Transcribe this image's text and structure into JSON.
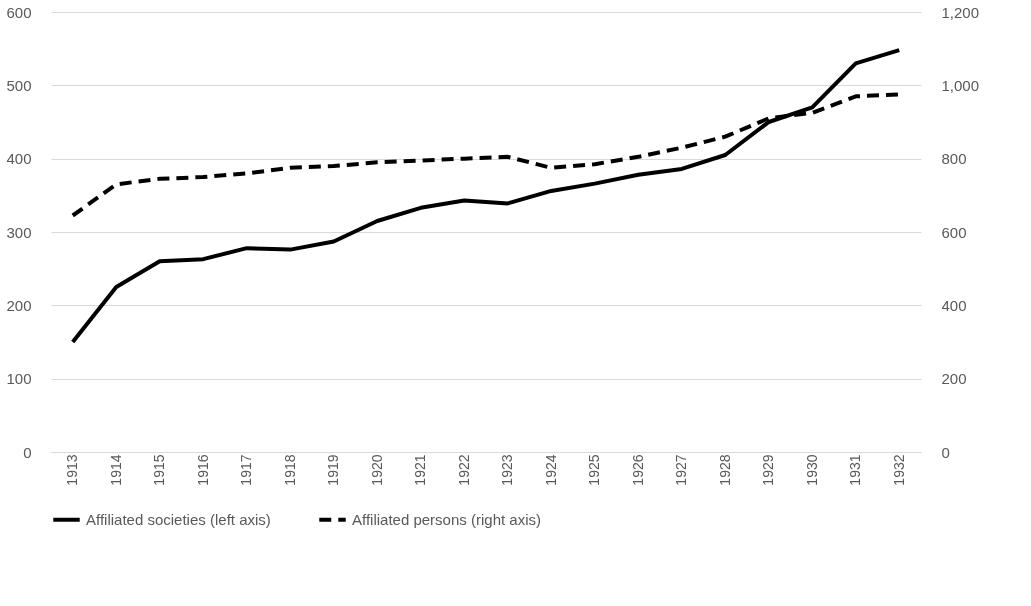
{
  "chart_data": {
    "type": "line",
    "categories": [
      "1913",
      "1914",
      "1915",
      "1916",
      "1917",
      "1918",
      "1919",
      "1920",
      "1921",
      "1922",
      "1923",
      "1924",
      "1925",
      "1926",
      "1927",
      "1928",
      "1929",
      "1930",
      "1931",
      "1932"
    ],
    "series": [
      {
        "name": "Affiliated societies (left axis)",
        "color": "#000000",
        "line_style": "solid",
        "values": [
          150,
          225,
          260,
          263,
          278,
          276,
          287,
          315,
          333,
          343,
          339,
          356,
          366,
          378,
          386,
          405,
          450,
          470,
          530,
          548
        ]
      },
      {
        "name": "Affiliated persons (right axis)",
        "color": "#000000",
        "line_style": "dashed",
        "axis": "y2",
        "values": [
          645,
          730,
          745,
          750,
          760,
          775,
          780,
          790,
          795,
          800,
          805,
          775,
          785,
          805,
          830,
          860,
          910,
          925,
          970,
          975
        ]
      }
    ],
    "ylim": [
      0,
      600
    ],
    "yticks": [
      0,
      100,
      200,
      300,
      400,
      500,
      600
    ],
    "y2lim": [
      0,
      1200
    ],
    "y2ticks": [
      0,
      200,
      400,
      600,
      800,
      {
        "value": 1000,
        "label": "1,000"
      },
      {
        "value": 1200,
        "label": "1,200"
      }
    ],
    "grid": "y",
    "legend": "bottom",
    "marker": "none"
  }
}
